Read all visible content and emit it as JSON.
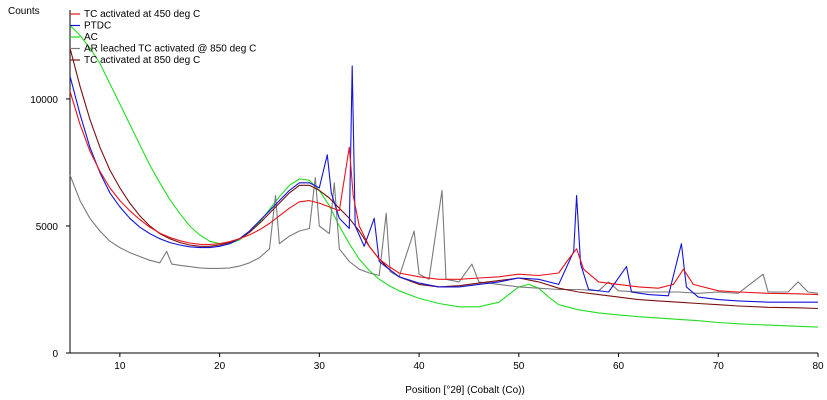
{
  "chart_data": {
    "type": "line",
    "ylabel": "Counts",
    "xlabel": "Position [°2θ] (Cobalt (Co))",
    "xlim": [
      5,
      80
    ],
    "ylim": [
      0,
      13500
    ],
    "xticks": [
      10,
      20,
      30,
      40,
      50,
      60,
      70,
      80
    ],
    "yticks": [
      0,
      5000,
      10000
    ],
    "grid": false,
    "legend_position": "top-left",
    "series": [
      {
        "name": "TC activated at 450 deg C",
        "color": "#e8141c",
        "points": [
          [
            5,
            10300
          ],
          [
            6,
            9000
          ],
          [
            7,
            7950
          ],
          [
            8,
            7150
          ],
          [
            9,
            6500
          ],
          [
            10,
            6000
          ],
          [
            11,
            5600
          ],
          [
            12,
            5250
          ],
          [
            13,
            4950
          ],
          [
            14,
            4720
          ],
          [
            15,
            4550
          ],
          [
            16,
            4420
          ],
          [
            17,
            4330
          ],
          [
            18,
            4280
          ],
          [
            19,
            4270
          ],
          [
            20,
            4300
          ],
          [
            21,
            4380
          ],
          [
            22,
            4500
          ],
          [
            23,
            4650
          ],
          [
            24,
            4850
          ],
          [
            25,
            5100
          ],
          [
            26,
            5400
          ],
          [
            27,
            5700
          ],
          [
            28,
            5950
          ],
          [
            29,
            6000
          ],
          [
            30,
            5900
          ],
          [
            31,
            5750
          ],
          [
            32,
            5600
          ],
          [
            33,
            8100
          ],
          [
            33.4,
            6200
          ],
          [
            34,
            5000
          ],
          [
            35,
            4200
          ],
          [
            36,
            3700
          ],
          [
            37,
            3400
          ],
          [
            38,
            3150
          ],
          [
            40,
            3000
          ],
          [
            42,
            2900
          ],
          [
            44,
            2900
          ],
          [
            46,
            2950
          ],
          [
            48,
            3000
          ],
          [
            50,
            3100
          ],
          [
            52,
            3050
          ],
          [
            54,
            3150
          ],
          [
            55,
            3700
          ],
          [
            55.8,
            4100
          ],
          [
            56.5,
            3300
          ],
          [
            58,
            2800
          ],
          [
            60,
            2700
          ],
          [
            62,
            2600
          ],
          [
            64,
            2550
          ],
          [
            65.5,
            2700
          ],
          [
            66.5,
            3300
          ],
          [
            67.5,
            2700
          ],
          [
            70,
            2450
          ],
          [
            72,
            2400
          ],
          [
            75,
            2350
          ],
          [
            78,
            2330
          ],
          [
            80,
            2300
          ]
        ]
      },
      {
        "name": "PTDC",
        "color": "#1414d8",
        "points": [
          [
            5,
            10900
          ],
          [
            6,
            9400
          ],
          [
            7,
            8100
          ],
          [
            8,
            7100
          ],
          [
            9,
            6300
          ],
          [
            10,
            5750
          ],
          [
            11,
            5300
          ],
          [
            12,
            4950
          ],
          [
            13,
            4700
          ],
          [
            14,
            4500
          ],
          [
            15,
            4350
          ],
          [
            16,
            4250
          ],
          [
            17,
            4180
          ],
          [
            18,
            4150
          ],
          [
            19,
            4150
          ],
          [
            20,
            4200
          ],
          [
            21,
            4300
          ],
          [
            22,
            4500
          ],
          [
            23,
            4800
          ],
          [
            24,
            5200
          ],
          [
            25,
            5600
          ],
          [
            26,
            6000
          ],
          [
            27,
            6400
          ],
          [
            28,
            6700
          ],
          [
            29,
            6700
          ],
          [
            30,
            6500
          ],
          [
            30.8,
            7800
          ],
          [
            31.2,
            6300
          ],
          [
            32,
            5300
          ],
          [
            33,
            4900
          ],
          [
            33.3,
            11300
          ],
          [
            33.6,
            5000
          ],
          [
            34.5,
            4200
          ],
          [
            35.5,
            5300
          ],
          [
            36,
            3600
          ],
          [
            37,
            3300
          ],
          [
            38,
            3000
          ],
          [
            40,
            2750
          ],
          [
            42,
            2600
          ],
          [
            44,
            2600
          ],
          [
            46,
            2700
          ],
          [
            48,
            2800
          ],
          [
            50,
            2950
          ],
          [
            52,
            2900
          ],
          [
            54,
            2700
          ],
          [
            55.5,
            4000
          ],
          [
            55.8,
            6200
          ],
          [
            56.2,
            3500
          ],
          [
            57,
            2500
          ],
          [
            59,
            2400
          ],
          [
            60.8,
            3400
          ],
          [
            61.3,
            2400
          ],
          [
            63,
            2300
          ],
          [
            65,
            2250
          ],
          [
            66.3,
            4300
          ],
          [
            66.8,
            2600
          ],
          [
            68,
            2200
          ],
          [
            70,
            2100
          ],
          [
            72,
            2050
          ],
          [
            75,
            2000
          ],
          [
            78,
            2000
          ],
          [
            80,
            2000
          ]
        ]
      },
      {
        "name": "AC",
        "color": "#22dd22",
        "points": [
          [
            5,
            12900
          ],
          [
            6,
            12500
          ],
          [
            7,
            12000
          ],
          [
            8,
            11400
          ],
          [
            9,
            10600
          ],
          [
            10,
            9800
          ],
          [
            11,
            9000
          ],
          [
            12,
            8200
          ],
          [
            13,
            7400
          ],
          [
            14,
            6700
          ],
          [
            15,
            6050
          ],
          [
            16,
            5500
          ],
          [
            17,
            5000
          ],
          [
            18,
            4650
          ],
          [
            19,
            4400
          ],
          [
            20,
            4300
          ],
          [
            21,
            4300
          ],
          [
            22,
            4450
          ],
          [
            23,
            4750
          ],
          [
            24,
            5150
          ],
          [
            25,
            5650
          ],
          [
            26,
            6150
          ],
          [
            27,
            6600
          ],
          [
            28,
            6850
          ],
          [
            29,
            6800
          ],
          [
            30,
            6400
          ],
          [
            31,
            5800
          ],
          [
            32,
            5000
          ],
          [
            33,
            4300
          ],
          [
            34,
            3700
          ],
          [
            35,
            3250
          ],
          [
            36,
            2900
          ],
          [
            37,
            2650
          ],
          [
            38,
            2450
          ],
          [
            40,
            2150
          ],
          [
            42,
            1950
          ],
          [
            44,
            1820
          ],
          [
            46,
            1820
          ],
          [
            48,
            2000
          ],
          [
            49,
            2300
          ],
          [
            50,
            2600
          ],
          [
            51,
            2700
          ],
          [
            52,
            2550
          ],
          [
            53,
            2200
          ],
          [
            54,
            1900
          ],
          [
            56,
            1700
          ],
          [
            58,
            1580
          ],
          [
            60,
            1500
          ],
          [
            62,
            1430
          ],
          [
            65,
            1350
          ],
          [
            68,
            1270
          ],
          [
            70,
            1200
          ],
          [
            72,
            1150
          ],
          [
            75,
            1100
          ],
          [
            78,
            1050
          ],
          [
            80,
            1020
          ]
        ]
      },
      {
        "name": "AR leached TC activated @ 850 deg C",
        "color": "#7a7a7a",
        "points": [
          [
            5,
            7000
          ],
          [
            6,
            6000
          ],
          [
            7,
            5300
          ],
          [
            8,
            4800
          ],
          [
            9,
            4400
          ],
          [
            10,
            4150
          ],
          [
            11,
            3950
          ],
          [
            12,
            3800
          ],
          [
            13,
            3650
          ],
          [
            14,
            3550
          ],
          [
            14.7,
            4000
          ],
          [
            15.2,
            3500
          ],
          [
            16,
            3450
          ],
          [
            17,
            3400
          ],
          [
            18,
            3350
          ],
          [
            19,
            3330
          ],
          [
            20,
            3330
          ],
          [
            21,
            3350
          ],
          [
            22,
            3420
          ],
          [
            23,
            3550
          ],
          [
            24,
            3750
          ],
          [
            25,
            4100
          ],
          [
            25.6,
            6200
          ],
          [
            26,
            4300
          ],
          [
            27,
            4600
          ],
          [
            28,
            4800
          ],
          [
            29,
            4900
          ],
          [
            29.6,
            6900
          ],
          [
            30,
            5000
          ],
          [
            31,
            4700
          ],
          [
            31.5,
            6700
          ],
          [
            32,
            4100
          ],
          [
            33,
            3600
          ],
          [
            34,
            3300
          ],
          [
            35,
            3150
          ],
          [
            36,
            3050
          ],
          [
            36.7,
            5500
          ],
          [
            37.1,
            3200
          ],
          [
            38,
            3000
          ],
          [
            39.5,
            4800
          ],
          [
            40,
            3100
          ],
          [
            41,
            2900
          ],
          [
            42.3,
            6400
          ],
          [
            42.7,
            2900
          ],
          [
            44,
            2800
          ],
          [
            45.3,
            3500
          ],
          [
            46,
            2800
          ],
          [
            48,
            2700
          ],
          [
            50,
            2600
          ],
          [
            52,
            2550
          ],
          [
            54,
            2500
          ],
          [
            56,
            2500
          ],
          [
            58,
            2450
          ],
          [
            59,
            2800
          ],
          [
            60,
            2450
          ],
          [
            62,
            2400
          ],
          [
            64,
            2400
          ],
          [
            66,
            2400
          ],
          [
            68,
            2350
          ],
          [
            70,
            2400
          ],
          [
            72,
            2350
          ],
          [
            74.5,
            3100
          ],
          [
            75,
            2400
          ],
          [
            77,
            2400
          ],
          [
            78,
            2800
          ],
          [
            79,
            2400
          ],
          [
            80,
            2350
          ]
        ]
      },
      {
        "name": "TC activated at 850 deg C",
        "color": "#7a1010",
        "points": [
          [
            5,
            12000
          ],
          [
            6,
            10500
          ],
          [
            7,
            9200
          ],
          [
            8,
            8100
          ],
          [
            9,
            7200
          ],
          [
            10,
            6500
          ],
          [
            11,
            5900
          ],
          [
            12,
            5400
          ],
          [
            13,
            5000
          ],
          [
            14,
            4700
          ],
          [
            15,
            4500
          ],
          [
            16,
            4350
          ],
          [
            17,
            4250
          ],
          [
            18,
            4200
          ],
          [
            19,
            4200
          ],
          [
            20,
            4250
          ],
          [
            21,
            4350
          ],
          [
            22,
            4500
          ],
          [
            23,
            4750
          ],
          [
            24,
            5100
          ],
          [
            25,
            5500
          ],
          [
            26,
            5900
          ],
          [
            27,
            6300
          ],
          [
            28,
            6600
          ],
          [
            29,
            6600
          ],
          [
            30,
            6400
          ],
          [
            31,
            6100
          ],
          [
            32,
            5700
          ],
          [
            33,
            5300
          ],
          [
            34,
            4800
          ],
          [
            35,
            4200
          ],
          [
            36,
            3700
          ],
          [
            37,
            3300
          ],
          [
            38,
            3000
          ],
          [
            40,
            2700
          ],
          [
            42,
            2600
          ],
          [
            44,
            2650
          ],
          [
            46,
            2750
          ],
          [
            48,
            2850
          ],
          [
            50,
            2950
          ],
          [
            52,
            2800
          ],
          [
            54,
            2550
          ],
          [
            56,
            2400
          ],
          [
            58,
            2300
          ],
          [
            60,
            2200
          ],
          [
            62,
            2100
          ],
          [
            64,
            2050
          ],
          [
            66,
            2000
          ],
          [
            68,
            1950
          ],
          [
            70,
            1900
          ],
          [
            72,
            1850
          ],
          [
            75,
            1800
          ],
          [
            78,
            1780
          ],
          [
            80,
            1750
          ]
        ]
      }
    ]
  }
}
